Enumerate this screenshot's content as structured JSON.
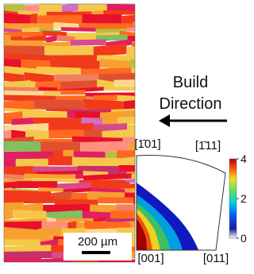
{
  "build_label": [
    "Build",
    "Direction"
  ],
  "scale_bar": "200 µm",
  "pole_figure": {
    "corner_labels": {
      "top_left": "[1̄01]",
      "top_right": "[1̄11]",
      "bottom_left": "[001]",
      "bottom_right": "[011]"
    },
    "colorbar_ticks": [
      4,
      2,
      0
    ]
  }
}
